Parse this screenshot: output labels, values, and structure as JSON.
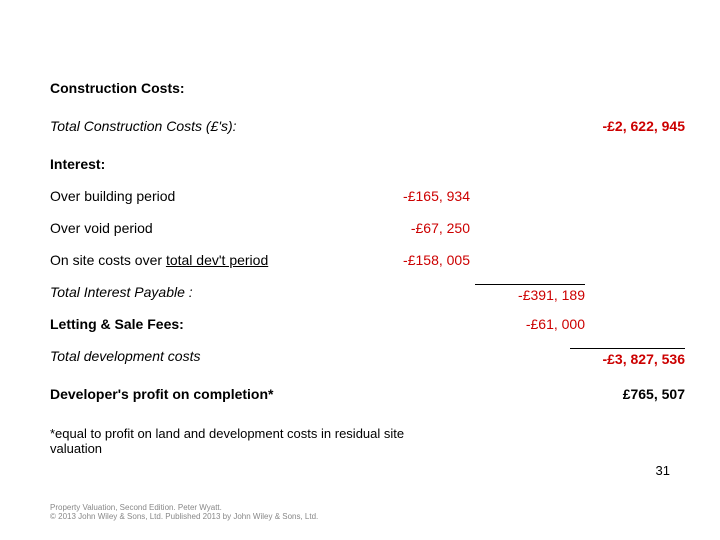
{
  "headings": {
    "construction_costs": "Construction Costs:",
    "total_construction_label": "Total Construction Costs (£'s):",
    "total_construction_value": "-£2, 622, 945",
    "interest": "Interest:",
    "over_building_label": "Over building period",
    "over_building_value": "-£165, 934",
    "over_void_label": "Over void period",
    "over_void_value": "-£67, 250",
    "on_site_label_pre": "On site costs over ",
    "on_site_label_ul": "total dev't period",
    "on_site_value": "-£158, 005",
    "total_interest_label": "Total Interest Payable :",
    "total_interest_value": "-£391, 189",
    "letting_fees_label": "Letting & Sale Fees:",
    "letting_fees_value": "-£61, 000",
    "total_dev_label": "Total development costs",
    "total_dev_value": "-£3, 827, 536",
    "profit_label": "Developer's profit on completion*",
    "profit_value": "£765, 507",
    "footnote": "*equal to profit on land and development costs in residual site valuation",
    "pagenum": "31",
    "footer_line1": "Property Valuation, Second Edition. Peter Wyatt.",
    "footer_line2": "© 2013 John Wiley & Sons, Ltd. Published 2013 by John Wiley & Sons, Ltd."
  },
  "colors": {
    "red": "#cc0000",
    "text": "#000000",
    "bg": "#ffffff"
  }
}
